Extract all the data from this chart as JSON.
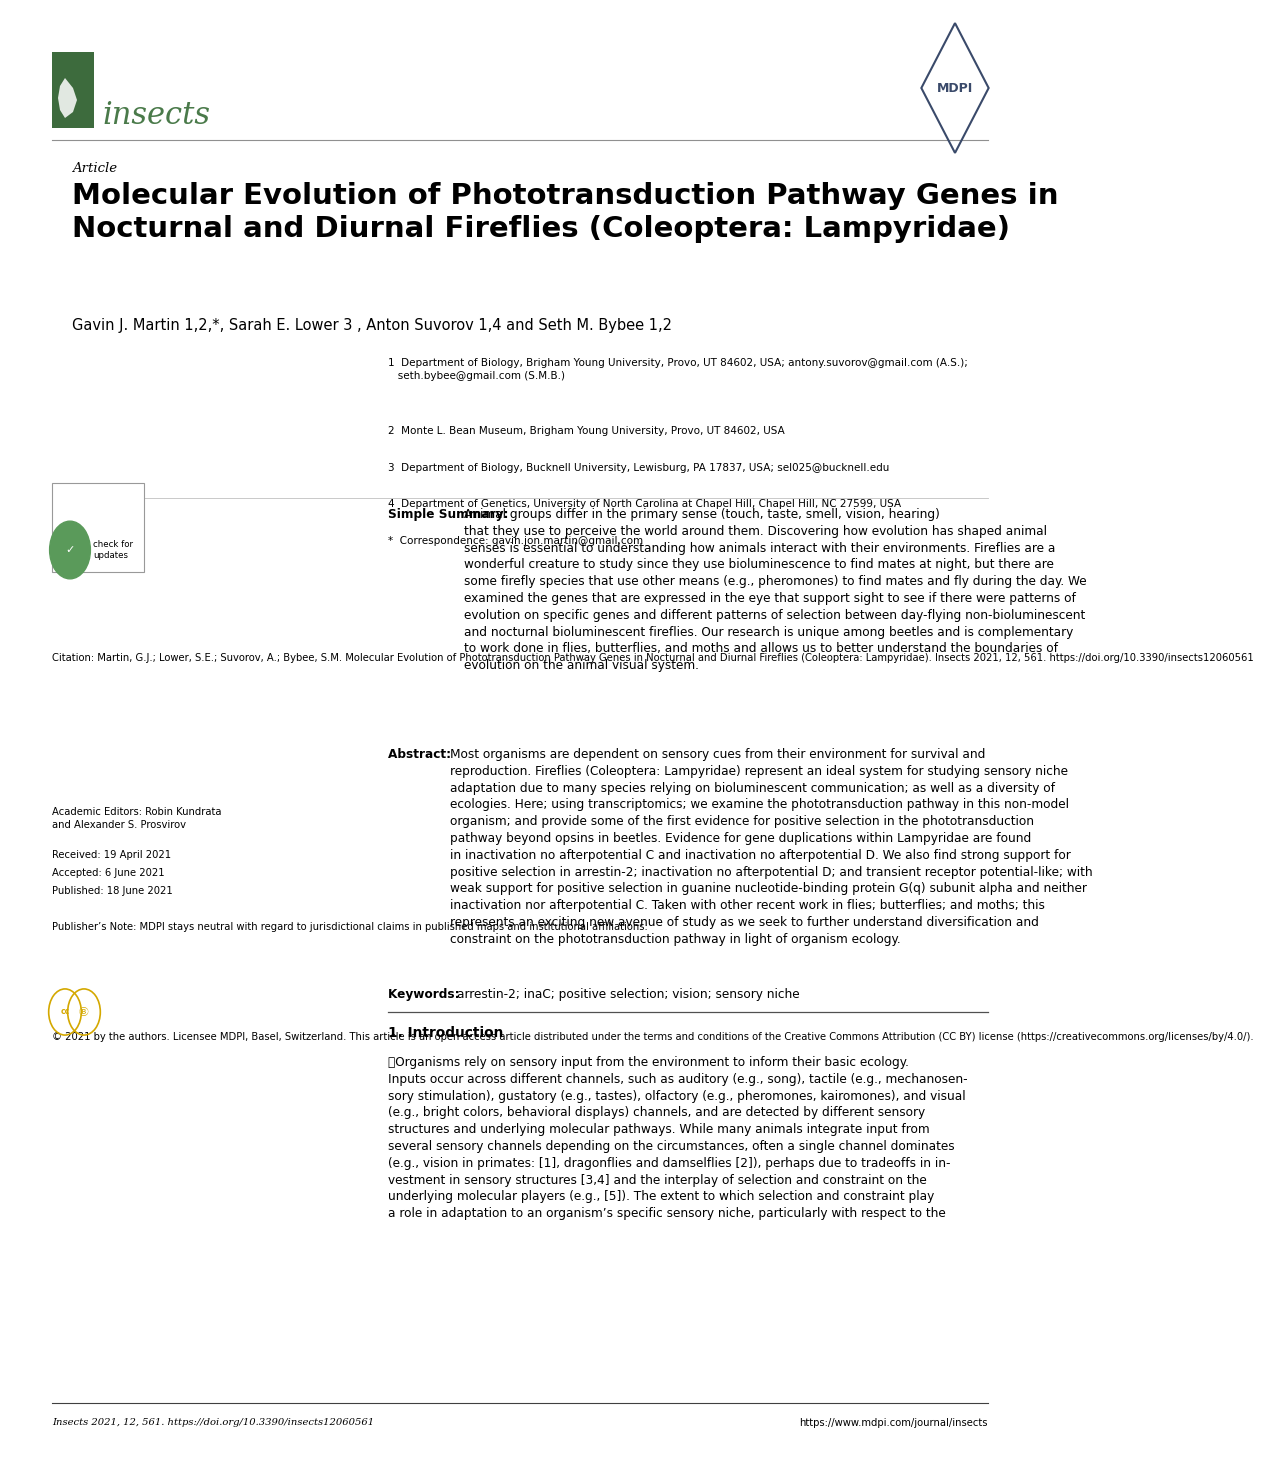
{
  "page_width": 10.2,
  "page_height": 14.42,
  "bg_color": "#ffffff",
  "header": {
    "journal_name": "insects",
    "journal_color": "#4a7a4a",
    "journal_box_color": "#3d6b3d",
    "mdpi_text": "MDPI",
    "line_color": "#808080"
  },
  "article_label": "Article",
  "title": "Molecular Evolution of Phototransduction Pathway Genes in\nNocturnal and Diurnal Fireflies (Coleoptera: Lampyridae)",
  "authors": "Gavin J. Martin 1,2,*, Sarah E. Lower 3 , Anton Suvorov 1,4 and Seth M. Bybee 1,2",
  "affiliations": [
    "1  Department of Biology, Brigham Young University, Provo, UT 84602, USA; antony.suvorov@gmail.com (A.S.);\n   seth.bybee@gmail.com (S.M.B.)",
    "2  Monte L. Bean Museum, Brigham Young University, Provo, UT 84602, USA",
    "3  Department of Biology, Bucknell University, Lewisburg, PA 17837, USA; sel025@bucknell.edu",
    "4  Department of Genetics, University of North Carolina at Chapel Hill, Chapel Hill, NC 27599, USA",
    "*  Correspondence: gavin.jon.martin@gmail.com"
  ],
  "simple_summary_title": "Simple Summary:",
  "simple_summary": "Animal groups differ in the primary sense (touch, taste, smell, vision, hearing) that they use to perceive the world around them. Discovering how evolution has shaped animal senses is essential to understanding how animals interact with their environments. Fireflies are a wonderful creature to study since they use bioluminescence to find mates at night, but there are some firefly species that use other means (e.g., pheromones) to find mates and fly during the day. We examined the genes that are expressed in the eye that support sight to see if there were patterns of evolution on specific genes and different patterns of selection between day-flying non-bioluminescent and nocturnal bioluminescent fireflies. Our research is unique among beetles and is complementary to work done in flies, butterflies, and moths and allows us to better understand the boundaries of evolution on the animal visual system.",
  "abstract_title": "Abstract:",
  "abstract": "Most organisms are dependent on sensory cues from their environment for survival and reproduction. Fireflies (Coleoptera: Lampyridae) represent an ideal system for studying sensory niche adaptation due to many species relying on bioluminescent communication; as well as a diversity of ecologies. Here; using transcriptomics; we examine the phototransduction pathway in this non-model organism; and provide some of the first evidence for positive selection in the phototransduction pathway beyond opsins in beetles. Evidence for gene duplications within Lampyridae are found in inactivation no afterpotential C and inactivation no afterpotential D. We also find strong support for positive selection in arrestin-2; inactivation no afterpotential D; and transient receptor potential-like; with weak support for positive selection in guanine nucleotide-binding protein G(q) subunit alpha and neither inactivation nor afterpotential C. Taken with other recent work in flies; butterflies; and moths; this represents an exciting new avenue of study as we seek to further understand diversification and constraint on the phototransduction pathway in light of organism ecology.",
  "keywords_label": "Keywords:",
  "keywords": "arrestin-2; inaC; positive selection; vision; sensory niche",
  "section1_title": "1. Introduction",
  "intro_text": "Organisms rely on sensory input from the environment to inform their basic ecology. Inputs occur across different channels, such as auditory (e.g., song), tactile (e.g., mechanosensory stimulation), gustatory (e.g., tastes), olfactory (e.g., pheromones, kairomones), and visual (e.g., bright colors, behavioral displays) channels, and are detected by different sensory structures and underlying molecular pathways. While many animals integrate input from several sensory channels depending on the circumstances, often a single channel dominates (e.g., vision in primates: [1], dragonflies and damselflies [2]), perhaps due to tradeoffs in investment in sensory structures [3,4] and the interplay of selection and constraint on the underlying molecular players (e.g., [5]). The extent to which selection and constraint play a role in adaptation to an organism’s specific sensory niche, particularly with respect to the",
  "left_column": {
    "citation": "Citation: Martin, G.J.; Lower, S.E.; Suvorov, A.; Bybee, S.M. Molecular Evolution of Phototransduction Pathway Genes in Nocturnal and Diurnal Fireflies (Coleoptera: Lampyridae). Insects 2021, 12, 561. https://doi.org/10.3390/insects12060561",
    "academic_editors": "Academic Editors: Robin Kundrata\nand Alexander S. Prosvirov",
    "received": "Received: 19 April 2021",
    "accepted": "Accepted: 6 June 2021",
    "published": "Published: 18 June 2021",
    "publishers_note": "Publisher’s Note: MDPI stays neutral with regard to jurisdictional claims in published maps and institutional affiliations.",
    "copyright": "© 2021 by the authors. Licensee MDPI, Basel, Switzerland. This article is an open access article distributed under the terms and conditions of the Creative Commons Attribution (CC BY) license (https://creativecommons.org/licenses/by/4.0/)."
  },
  "footer_left": "Insects 2021, 12, 561. https://doi.org/10.3390/insects12060561",
  "footer_right": "https://www.mdpi.com/journal/insects"
}
